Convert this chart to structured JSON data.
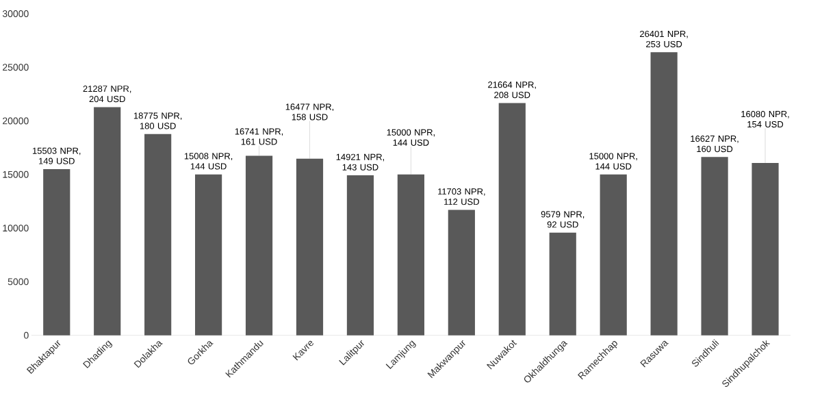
{
  "chart_data": {
    "type": "bar",
    "categories": [
      "Bhaktapur",
      "Dhading",
      "Dolakha",
      "Gorkha",
      "Kathmandu",
      "Kavre",
      "Lalitpur",
      "Lamjung",
      "Makwanpur",
      "Nuwakot",
      "Okhaldhunga",
      "Ramechhap",
      "Rasuwa",
      "Sindhuli",
      "Sindhupalchok"
    ],
    "values": [
      15503,
      21287,
      18775,
      15008,
      16741,
      16477,
      14921,
      15000,
      11703,
      21664,
      9579,
      15000,
      26401,
      16627,
      16080
    ],
    "value_labels": [
      "15503 NPR, 149 USD",
      "21287 NPR, 204 USD",
      "18775 NPR, 180 USD",
      "15008 NPR, 144 USD",
      "16741 NPR, 161 USD",
      "16477 NPR, 158 USD",
      "14921 NPR, 143 USD",
      "15000 NPR, 144 USD",
      "11703 NPR, 112 USD",
      "21664 NPR, 208 USD",
      "9579 NPR, 92 USD",
      "15000 NPR, 144 USD",
      "26401 NPR, 253 USD",
      "16627 NPR, 160 USD",
      "16080 NPR, 154 USD"
    ],
    "color": "#595959",
    "ylim": [
      0,
      30000
    ],
    "yticks": [
      0,
      5000,
      10000,
      15000,
      20000,
      25000,
      30000
    ]
  }
}
